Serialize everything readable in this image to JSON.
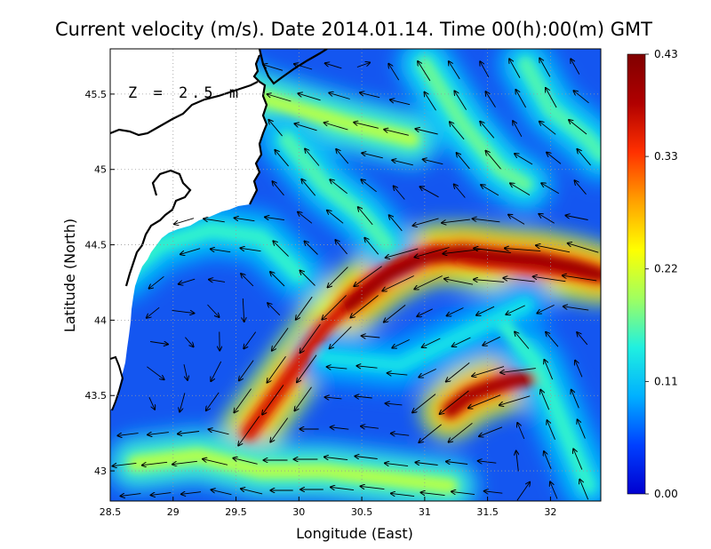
{
  "chart_data": {
    "type": "heatmap",
    "title": "Current velocity (m/s). Date 2014.01.14. Time 00(h):00(m) GMT",
    "xlabel": "Longitude (East)",
    "ylabel": "Latitude (North)",
    "annotation": "Z = 2.5 m",
    "xlim": [
      28.5,
      32.4
    ],
    "ylim": [
      42.8,
      45.8
    ],
    "x_ticks": [
      "28.5",
      "29",
      "29.5",
      "30",
      "30.5",
      "31",
      "31.5",
      "32"
    ],
    "x_tick_values": [
      28.5,
      29,
      29.5,
      30,
      30.5,
      31,
      31.5,
      32
    ],
    "y_ticks": [
      "43",
      "43.5",
      "44",
      "44.5",
      "45",
      "45.5"
    ],
    "y_tick_values": [
      43,
      43.5,
      44,
      44.5,
      45,
      45.5
    ],
    "grid": true,
    "colorbar": {
      "ticks": [
        "0.00",
        "0.11",
        "0.22",
        "0.33",
        "0.43"
      ],
      "tick_values": [
        0.0,
        0.11,
        0.22,
        0.33,
        0.43
      ],
      "range": [
        0.0,
        0.43
      ],
      "colormap": [
        "#0000d0",
        "#0040ff",
        "#00b0ff",
        "#20f0e0",
        "#a0ff60",
        "#ffff00",
        "#ffa000",
        "#ff3000",
        "#b00000",
        "#800000"
      ]
    },
    "jets": [
      {
        "lon": [
          29.6,
          29.9,
          30.2,
          30.5,
          30.8,
          31.1,
          31.4,
          31.7,
          32.0,
          32.4
        ],
        "lat": [
          43.25,
          43.6,
          43.95,
          44.2,
          44.38,
          44.45,
          44.4,
          44.38,
          44.35,
          44.3
        ],
        "speed": 0.36
      },
      {
        "lon": [
          30.4,
          30.7,
          31.0,
          31.3,
          31.6,
          31.9,
          32.2,
          32.4
        ],
        "lat": [
          44.1,
          44.3,
          44.42,
          44.45,
          44.42,
          44.4,
          44.35,
          44.3
        ],
        "speed": 0.4
      },
      {
        "lon": [
          31.2,
          31.35,
          31.5,
          31.7,
          31.9
        ],
        "lat": [
          43.4,
          43.5,
          43.55,
          43.6,
          43.62
        ],
        "speed": 0.39
      },
      {
        "lon": [
          28.7,
          29.2,
          29.7,
          30.2,
          30.7,
          31.2
        ],
        "lat": [
          43.05,
          43.1,
          43.0,
          43.0,
          42.95,
          42.9
        ],
        "speed": 0.2
      },
      {
        "lon": [
          29.3,
          29.6,
          30.0,
          30.4,
          30.9
        ],
        "lat": [
          45.7,
          45.5,
          45.4,
          45.3,
          45.2
        ],
        "speed": 0.2
      },
      {
        "lon": [
          31.0,
          31.3,
          31.6,
          31.8
        ],
        "lat": [
          45.7,
          45.3,
          45.0,
          44.9
        ],
        "speed": 0.17
      },
      {
        "lon": [
          31.8,
          32.0,
          32.3,
          32.4
        ],
        "lat": [
          45.7,
          45.4,
          45.2,
          45.1
        ],
        "speed": 0.16
      },
      {
        "lon": [
          29.9,
          30.2,
          30.5,
          30.7
        ],
        "lat": [
          45.2,
          44.9,
          44.7,
          44.5
        ],
        "speed": 0.16
      },
      {
        "lon": [
          28.6,
          28.9,
          29.3,
          29.7,
          30.0
        ],
        "lat": [
          44.3,
          44.5,
          44.6,
          44.55,
          44.3
        ],
        "speed": 0.15
      },
      {
        "lon": [
          31.6,
          31.9,
          32.1,
          32.3
        ],
        "lat": [
          44.0,
          43.7,
          43.3,
          42.9
        ],
        "speed": 0.15
      },
      {
        "lon": [
          30.2,
          30.8,
          31.3,
          31.8
        ],
        "lat": [
          43.75,
          43.7,
          43.9,
          44.1
        ],
        "speed": 0.13
      }
    ]
  }
}
